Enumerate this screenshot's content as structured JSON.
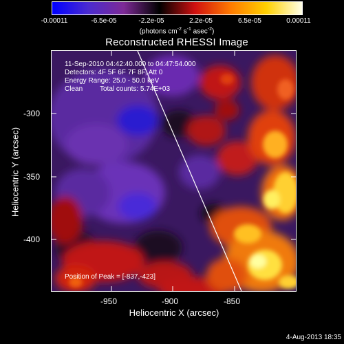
{
  "colorbar": {
    "tick_labels": [
      "-0.00011",
      "-6.5e-05",
      "-2.2e-05",
      "2.2e-05",
      "6.5e-05",
      "0.00011"
    ],
    "units_prefix": "(photons cm",
    "units_exp1": "-2",
    "units_mid": " s",
    "units_exp2": "-1",
    "units_mid2": " asec",
    "units_exp3": "-2",
    "units_suffix": ")",
    "colors": [
      "#0000ff",
      "#4a2bd0",
      "#7d2a96",
      "#000000",
      "#d01010",
      "#ff7a00",
      "#ffd000",
      "#ffffe8"
    ]
  },
  "plot": {
    "title": "Reconstructed RHESSI Image",
    "info_line1": "11-Sep-2010 04:42:40.000 to 04:47:54.000",
    "info_line2": "Detectors: 4F 5F 6F 7F 8F, Att 0",
    "info_line3": "Energy Range: 25.0 - 50.0 keV",
    "info_line4_a": "Clean",
    "info_line4_b": "Total counts: 5.74E+03",
    "peak_text": "Position of Peak = [-837,-423]",
    "xlabel": "Heliocentric X (arcsec)",
    "ylabel": "Heliocentric Y (arcsec)",
    "x_ticks": [
      "-950",
      "-900",
      "-850"
    ],
    "y_ticks": [
      "-300",
      "-350",
      "-400"
    ]
  },
  "timestamp": "4-Aug-2013 18:35"
}
